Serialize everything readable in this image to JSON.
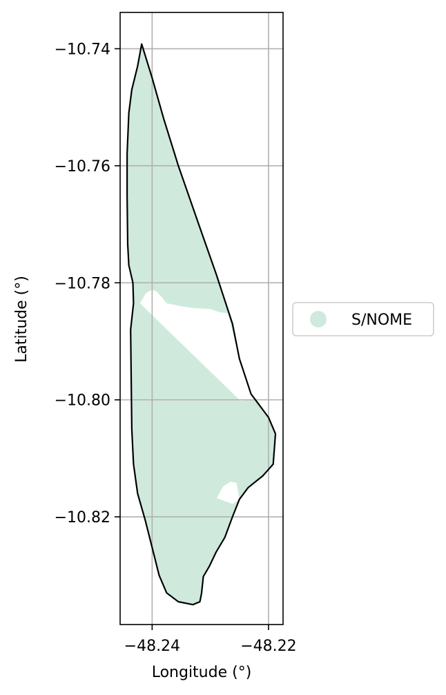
{
  "chart_data": {
    "type": "map",
    "xlabel": "Longitude (°)",
    "ylabel": "Latitude (°)",
    "xlim": [
      -48.2455,
      -48.2175
    ],
    "ylim": [
      -10.8384,
      -10.7338
    ],
    "x_ticks": [
      -48.24,
      -48.22
    ],
    "y_ticks": [
      -10.74,
      -10.76,
      -10.78,
      -10.8,
      -10.82
    ],
    "x_tick_labels": [
      "−48.24",
      "−48.22"
    ],
    "y_tick_labels": [
      "−10.74",
      "−10.76",
      "−10.78",
      "−10.80",
      "−10.82"
    ],
    "grid": true,
    "legend": {
      "placement": "outside-right",
      "entries": [
        {
          "label": "S/NOME",
          "color": "#cfeadc"
        }
      ]
    },
    "fill_color": "#cfeadc",
    "boundary": [
      [
        -48.2418,
        -10.7392
      ],
      [
        -48.24,
        -10.745
      ],
      [
        -48.238,
        -10.752
      ],
      [
        -48.2355,
        -10.76
      ],
      [
        -48.232,
        -10.77
      ],
      [
        -48.229,
        -10.7785
      ],
      [
        -48.2262,
        -10.787
      ],
      [
        -48.225,
        -10.793
      ],
      [
        -48.223,
        -10.799
      ],
      [
        -48.22,
        -10.803
      ],
      [
        -48.2188,
        -10.8058
      ],
      [
        -48.2192,
        -10.811
      ],
      [
        -48.221,
        -10.813
      ],
      [
        -48.2235,
        -10.815
      ],
      [
        -48.225,
        -10.817
      ],
      [
        -48.2262,
        -10.82
      ],
      [
        -48.2275,
        -10.8235
      ],
      [
        -48.229,
        -10.826
      ],
      [
        -48.2302,
        -10.8285
      ],
      [
        -48.2312,
        -10.8302
      ],
      [
        -48.2315,
        -10.833
      ],
      [
        -48.2318,
        -10.8345
      ],
      [
        -48.233,
        -10.835
      ],
      [
        -48.2355,
        -10.8345
      ],
      [
        -48.2375,
        -10.833
      ],
      [
        -48.2388,
        -10.83
      ],
      [
        -48.2398,
        -10.826
      ],
      [
        -48.2412,
        -10.8205
      ],
      [
        -48.2425,
        -10.816
      ],
      [
        -48.2432,
        -10.811
      ],
      [
        -48.2435,
        -10.805
      ],
      [
        -48.2436,
        -10.796
      ],
      [
        -48.2437,
        -10.788
      ],
      [
        -48.2432,
        -10.7835
      ],
      [
        -48.2433,
        -10.78
      ],
      [
        -48.244,
        -10.777
      ],
      [
        -48.2442,
        -10.7735
      ],
      [
        -48.2443,
        -10.765
      ],
      [
        -48.2443,
        -10.758
      ],
      [
        -48.244,
        -10.751
      ],
      [
        -48.2435,
        -10.747
      ],
      [
        -48.2425,
        -10.743
      ],
      [
        -48.2418,
        -10.7392
      ]
    ],
    "gaps": [
      [
        [
          -48.2421,
          -10.7835
        ],
        [
          -48.241,
          -10.7817
        ],
        [
          -48.24,
          -10.7812
        ],
        [
          -48.2392,
          -10.7815
        ],
        [
          -48.2385,
          -10.7823
        ],
        [
          -48.2375,
          -10.7835
        ],
        [
          -48.235,
          -10.784
        ],
        [
          -48.233,
          -10.7843
        ],
        [
          -48.23,
          -10.7845
        ],
        [
          -48.2285,
          -10.785
        ],
        [
          -48.227,
          -10.7852
        ],
        [
          -48.225,
          -10.793
        ],
        [
          -48.223,
          -10.799
        ],
        [
          -48.2218,
          -10.7998
        ],
        [
          -48.2248,
          -10.8002
        ]
      ],
      [
        [
          -48.2289,
          -10.8168
        ],
        [
          -48.2278,
          -10.8148
        ],
        [
          -48.2265,
          -10.814
        ],
        [
          -48.2255,
          -10.8142
        ],
        [
          -48.225,
          -10.817
        ],
        [
          -48.2262,
          -10.8178
        ]
      ]
    ]
  }
}
